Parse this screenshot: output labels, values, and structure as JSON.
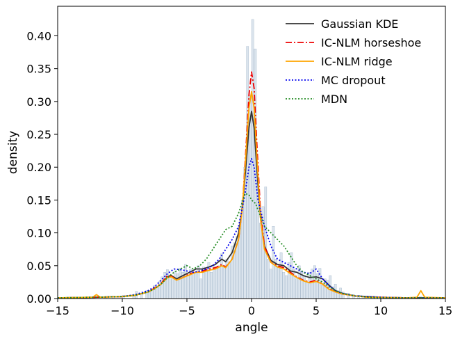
{
  "chart_data": {
    "type": "line",
    "title": "",
    "xlabel": "angle",
    "ylabel": "density",
    "xlim": [
      -15,
      15
    ],
    "ylim": [
      0,
      0.445
    ],
    "xticks": [
      "−15",
      "−10",
      "−5",
      "0",
      "5",
      "10",
      "15"
    ],
    "xtick_values": [
      -15,
      -10,
      -5,
      0,
      5,
      10,
      15
    ],
    "yticks": [
      "0.00",
      "0.05",
      "0.10",
      "0.15",
      "0.20",
      "0.25",
      "0.30",
      "0.35",
      "0.40"
    ],
    "ytick_values": [
      0,
      0.05,
      0.1,
      0.15,
      0.2,
      0.25,
      0.3,
      0.35,
      0.4
    ],
    "legend_position": "top-right",
    "grid": false,
    "histogram": {
      "color": "#b0c4d6",
      "bin_width": 0.2,
      "bin_centers": [
        -13.9,
        -12.1,
        -11.3,
        -10.7,
        -9.9,
        -9.1,
        -8.9,
        -8.5,
        -8.1,
        -7.9,
        -7.7,
        -7.5,
        -7.3,
        -7.1,
        -6.9,
        -6.7,
        -6.5,
        -6.3,
        -6.1,
        -5.9,
        -5.7,
        -5.5,
        -5.3,
        -5.1,
        -4.9,
        -4.7,
        -4.5,
        -4.3,
        -4.1,
        -3.9,
        -3.7,
        -3.5,
        -3.3,
        -3.1,
        -2.9,
        -2.7,
        -2.5,
        -2.3,
        -2.1,
        -1.9,
        -1.7,
        -1.5,
        -1.3,
        -1.1,
        -0.9,
        -0.7,
        -0.5,
        -0.3,
        -0.1,
        0.1,
        0.3,
        0.5,
        0.7,
        0.9,
        1.1,
        1.3,
        1.5,
        1.7,
        1.9,
        2.1,
        2.3,
        2.5,
        2.7,
        2.9,
        3.1,
        3.3,
        3.5,
        3.7,
        3.9,
        4.1,
        4.3,
        4.5,
        4.7,
        4.9,
        5.1,
        5.3,
        5.5,
        5.7,
        5.9,
        6.1,
        6.3,
        6.5,
        6.7,
        6.9,
        7.1,
        7.5,
        7.9,
        8.3,
        8.7,
        9.3,
        10.1,
        11.1,
        12.3,
        13.1
      ],
      "values": [
        0.002,
        0.003,
        0.002,
        0.004,
        0.005,
        0.006,
        0.011,
        0.008,
        0.012,
        0.01,
        0.014,
        0.02,
        0.018,
        0.026,
        0.033,
        0.04,
        0.044,
        0.036,
        0.03,
        0.042,
        0.038,
        0.046,
        0.04,
        0.052,
        0.035,
        0.045,
        0.038,
        0.04,
        0.05,
        0.03,
        0.048,
        0.042,
        0.055,
        0.04,
        0.052,
        0.046,
        0.05,
        0.068,
        0.05,
        0.06,
        0.055,
        0.08,
        0.085,
        0.095,
        0.11,
        0.15,
        0.2,
        0.384,
        0.31,
        0.425,
        0.38,
        0.18,
        0.115,
        0.14,
        0.17,
        0.06,
        0.045,
        0.11,
        0.06,
        0.05,
        0.07,
        0.04,
        0.035,
        0.055,
        0.07,
        0.045,
        0.03,
        0.05,
        0.042,
        0.035,
        0.025,
        0.04,
        0.045,
        0.05,
        0.038,
        0.046,
        0.02,
        0.03,
        0.028,
        0.035,
        0.018,
        0.022,
        0.012,
        0.016,
        0.01,
        0.008,
        0.006,
        0.005,
        0.004,
        0.003,
        0.002,
        0.002,
        0.002,
        0.003
      ]
    },
    "series": [
      {
        "name": "Gaussian KDE",
        "color": "#333333",
        "dash": "solid",
        "x": [
          -15,
          -12,
          -10,
          -9,
          -8,
          -7.5,
          -7,
          -6.5,
          -6.2,
          -5.8,
          -5.3,
          -4.8,
          -4.3,
          -3.8,
          -3.3,
          -2.8,
          -2.3,
          -2,
          -1.5,
          -1,
          -0.7,
          -0.4,
          -0.2,
          0,
          0.2,
          0.4,
          0.7,
          1,
          1.5,
          2,
          2.5,
          3,
          3.5,
          4,
          4.5,
          5,
          5.5,
          6,
          6.5,
          7,
          8,
          9,
          10,
          12,
          15
        ],
        "y": [
          0.001,
          0.002,
          0.003,
          0.005,
          0.01,
          0.015,
          0.022,
          0.033,
          0.035,
          0.03,
          0.035,
          0.04,
          0.045,
          0.045,
          0.048,
          0.052,
          0.06,
          0.056,
          0.07,
          0.1,
          0.14,
          0.21,
          0.26,
          0.285,
          0.26,
          0.2,
          0.12,
          0.08,
          0.058,
          0.052,
          0.05,
          0.042,
          0.04,
          0.035,
          0.032,
          0.033,
          0.03,
          0.02,
          0.012,
          0.008,
          0.004,
          0.003,
          0.002,
          0.001,
          0.001
        ]
      },
      {
        "name": "IC-NLM horseshoe",
        "color": "#ee0000",
        "dash": "dashdot",
        "x": [
          -15,
          -12,
          -10,
          -9,
          -8,
          -7.5,
          -7,
          -6.5,
          -6.2,
          -5.8,
          -5.3,
          -4.8,
          -4.3,
          -3.8,
          -3.3,
          -2.8,
          -2.3,
          -2,
          -1.5,
          -1,
          -0.7,
          -0.4,
          -0.2,
          0,
          0.2,
          0.4,
          0.7,
          1,
          1.5,
          2,
          2.5,
          3,
          3.5,
          4,
          4.5,
          5,
          5.5,
          6,
          6.5,
          7,
          8,
          9,
          10,
          12,
          15
        ],
        "y": [
          0.001,
          0.002,
          0.003,
          0.005,
          0.01,
          0.016,
          0.023,
          0.035,
          0.034,
          0.028,
          0.032,
          0.038,
          0.04,
          0.042,
          0.045,
          0.047,
          0.052,
          0.048,
          0.06,
          0.09,
          0.14,
          0.24,
          0.31,
          0.345,
          0.32,
          0.24,
          0.13,
          0.08,
          0.055,
          0.05,
          0.047,
          0.04,
          0.033,
          0.028,
          0.025,
          0.028,
          0.022,
          0.015,
          0.01,
          0.007,
          0.004,
          0.002,
          0.002,
          0.001,
          0.001
        ]
      },
      {
        "name": "IC-NLM ridge",
        "color": "#ffa500",
        "dash": "solid",
        "x": [
          -15,
          -12.3,
          -12,
          -11.7,
          -10,
          -9,
          -8,
          -7.5,
          -7,
          -6.5,
          -6.2,
          -5.8,
          -5.3,
          -4.8,
          -4.3,
          -3.8,
          -3.3,
          -2.8,
          -2.3,
          -2,
          -1.5,
          -1,
          -0.7,
          -0.4,
          -0.2,
          0,
          0.2,
          0.4,
          0.7,
          1,
          1.5,
          2,
          2.5,
          3,
          3.5,
          4,
          4.5,
          5,
          5.5,
          6,
          6.5,
          7,
          8,
          9,
          10,
          12,
          12.8,
          13.1,
          13.4,
          15
        ],
        "y": [
          0.001,
          0.002,
          0.006,
          0.002,
          0.003,
          0.005,
          0.01,
          0.015,
          0.022,
          0.032,
          0.033,
          0.028,
          0.032,
          0.036,
          0.04,
          0.04,
          0.043,
          0.045,
          0.05,
          0.047,
          0.06,
          0.09,
          0.14,
          0.23,
          0.29,
          0.315,
          0.29,
          0.22,
          0.12,
          0.075,
          0.055,
          0.048,
          0.045,
          0.038,
          0.032,
          0.027,
          0.024,
          0.026,
          0.022,
          0.014,
          0.01,
          0.007,
          0.004,
          0.002,
          0.002,
          0.001,
          0.002,
          0.012,
          0.002,
          0.001
        ]
      },
      {
        "name": "MC dropout",
        "color": "#0000ee",
        "dash": "dotted",
        "x": [
          -15,
          -12,
          -10,
          -9,
          -8,
          -7.5,
          -7,
          -6.5,
          -6,
          -5.5,
          -5,
          -4.5,
          -4,
          -3.5,
          -3,
          -2.5,
          -2,
          -1.5,
          -1,
          -0.5,
          -0.2,
          0,
          0.2,
          0.5,
          1,
          1.5,
          2,
          2.5,
          3,
          3.5,
          4,
          4.5,
          5,
          5.5,
          6,
          6.5,
          7,
          8,
          9,
          10,
          12,
          15
        ],
        "y": [
          0.001,
          0.002,
          0.003,
          0.006,
          0.012,
          0.018,
          0.028,
          0.038,
          0.045,
          0.044,
          0.042,
          0.04,
          0.042,
          0.045,
          0.05,
          0.06,
          0.075,
          0.09,
          0.11,
          0.16,
          0.2,
          0.213,
          0.2,
          0.15,
          0.11,
          0.08,
          0.06,
          0.055,
          0.05,
          0.045,
          0.04,
          0.038,
          0.045,
          0.03,
          0.02,
          0.012,
          0.008,
          0.004,
          0.003,
          0.002,
          0.001,
          0.001
        ]
      },
      {
        "name": "MDN",
        "color": "#228b22",
        "dash": "dotted",
        "x": [
          -15,
          -12,
          -10,
          -9,
          -8,
          -7.5,
          -7,
          -6.5,
          -6,
          -5.5,
          -5,
          -4.5,
          -4,
          -3.5,
          -3,
          -2.5,
          -2,
          -1.5,
          -1,
          -0.5,
          -0.2,
          0,
          0.3,
          0.6,
          1,
          1.5,
          2,
          2.5,
          3,
          3.5,
          4,
          4.5,
          5,
          5.5,
          6,
          6.5,
          7,
          8,
          9,
          10,
          12,
          15
        ],
        "y": [
          0.001,
          0.002,
          0.003,
          0.005,
          0.01,
          0.015,
          0.022,
          0.032,
          0.04,
          0.045,
          0.05,
          0.045,
          0.05,
          0.06,
          0.075,
          0.09,
          0.105,
          0.11,
          0.13,
          0.16,
          0.158,
          0.15,
          0.145,
          0.13,
          0.11,
          0.1,
          0.09,
          0.08,
          0.065,
          0.05,
          0.04,
          0.035,
          0.03,
          0.025,
          0.018,
          0.012,
          0.008,
          0.004,
          0.002,
          0.001,
          0.001,
          0.001
        ]
      }
    ]
  }
}
